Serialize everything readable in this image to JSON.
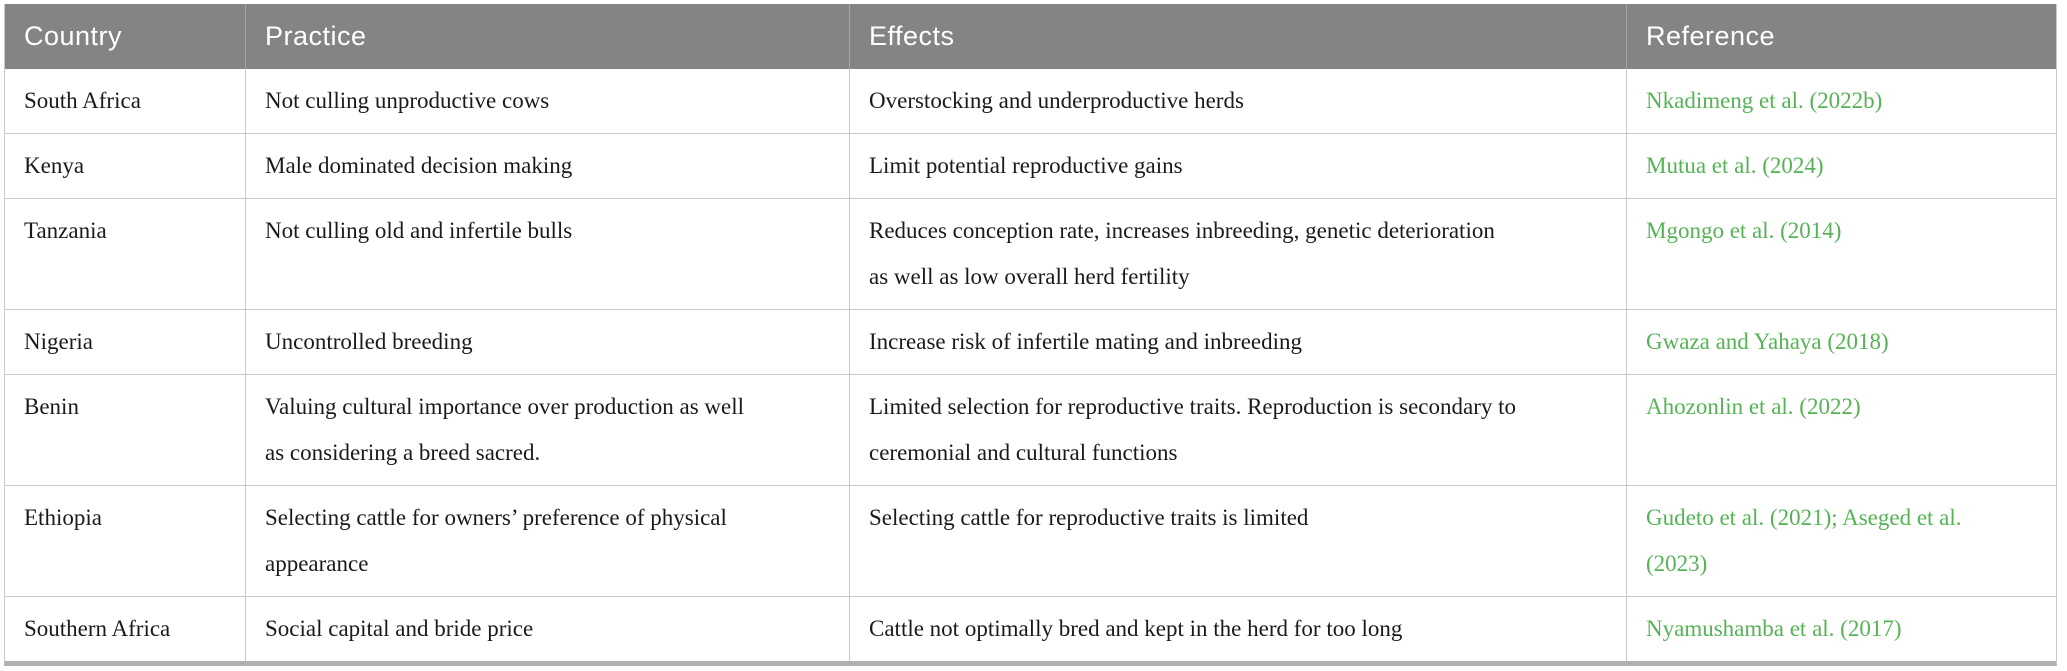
{
  "colors": {
    "header_background": "#848484",
    "header_text": "#ffffff",
    "header_divider": "#a6a6a6",
    "row_divider": "#c9c9c9",
    "bottom_bar": "#b0b0b0",
    "body_text": "#1a1a1a",
    "reference_link_green": "#55b355"
  },
  "table": {
    "columns": [
      {
        "label": "Country"
      },
      {
        "label": "Practice"
      },
      {
        "label": "Effects"
      },
      {
        "label": "Reference"
      }
    ],
    "rows": [
      {
        "country": "South Africa",
        "practice": "Not culling unproductive cows",
        "effects": "Overstocking and underproductive herds",
        "reference": "Nkadimeng et al. (2022b)"
      },
      {
        "country": "Kenya",
        "practice": "Male dominated decision making",
        "effects": "Limit potential reproductive gains",
        "reference": "Mutua et al. (2024)"
      },
      {
        "country": "Tanzania",
        "practice": "Not culling old and infertile bulls",
        "effects": "Reduces conception rate, increases inbreeding, genetic deterioration as well as low overall herd fertility",
        "reference": "Mgongo et al. (2014)"
      },
      {
        "country": "Nigeria",
        "practice": "Uncontrolled breeding",
        "effects": "Increase risk of infertile mating and inbreeding",
        "reference": "Gwaza and Yahaya (2018)"
      },
      {
        "country": "Benin",
        "practice": "Valuing cultural importance over production as well as considering a breed sacred.",
        "effects": "Limited selection for reproductive traits. Reproduction is secondary to ceremonial and cultural functions",
        "reference": "Ahozonlin et al. (2022)"
      },
      {
        "country": "Ethiopia",
        "practice": "Selecting cattle for owners’ preference of physical appearance",
        "effects": "Selecting cattle for reproductive traits is limited",
        "reference": "Gudeto et al. (2021); Aseged et al. (2023)"
      },
      {
        "country": "Southern Africa",
        "practice": "Social capital and bride price",
        "effects": "Cattle not optimally bred and kept in the herd for too long",
        "reference": "Nyamushamba et al. (2017)"
      }
    ]
  }
}
